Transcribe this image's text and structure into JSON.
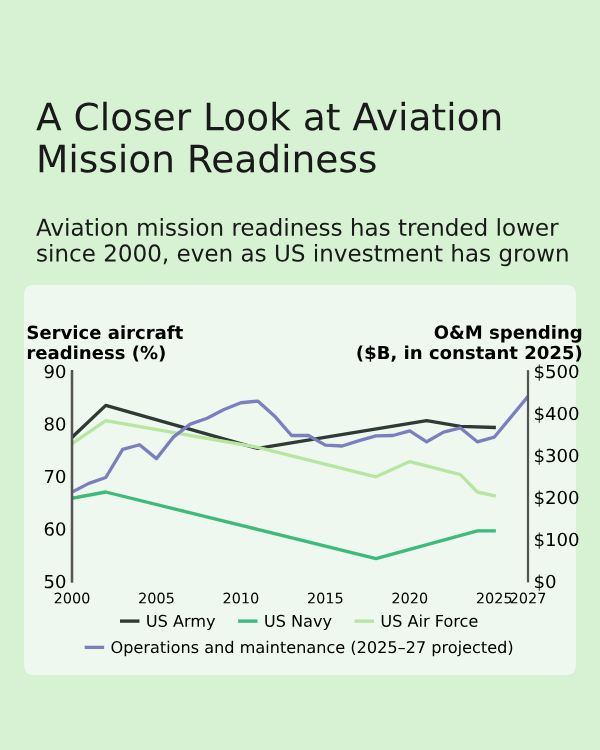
{
  "chart_data": {
    "type": "line",
    "title": "A Closer Look at Aviation Mission Readiness",
    "subtitle": "Aviation mission readiness has trended lower since 2000, even as US investment has grown",
    "ylabel": "Service aircraft\nreadiness (%)",
    "y2label": "O&M spending\n($B, in constant 2025)",
    "xlim": [
      2000,
      2027
    ],
    "xticks": [
      2000,
      2005,
      2010,
      2015,
      2020,
      2025,
      2027
    ],
    "ylim": [
      50,
      90
    ],
    "yticks": [
      50,
      60,
      70,
      80,
      90
    ],
    "y2lim": [
      0,
      500
    ],
    "y2ticks": [
      {
        "value": 0,
        "label": "$0"
      },
      {
        "value": 100,
        "label": "$100"
      },
      {
        "value": 200,
        "label": "$200"
      },
      {
        "value": 300,
        "label": "$300"
      },
      {
        "value": 400,
        "label": "$400"
      },
      {
        "value": 500,
        "label": "$500"
      }
    ],
    "grid": false,
    "legend": "bottom",
    "series": [
      {
        "name": "US Army",
        "color": "#2d3a35",
        "x": [
          2000,
          2002,
          2011,
          2021,
          2023,
          2025
        ],
        "values": [
          77.4,
          83.5,
          75.3,
          80.6,
          79.5,
          79.3
        ]
      },
      {
        "name": "US Navy",
        "color": "#3dbb7a",
        "x": [
          2000,
          2002,
          2018,
          2024,
          2025
        ],
        "values": [
          65.8,
          67,
          54.3,
          59.6,
          59.6
        ]
      },
      {
        "name": "US Air Force",
        "color": "#b8e6a0",
        "x": [
          2000,
          2002,
          2011,
          2018,
          2020,
          2023,
          2024,
          2025
        ],
        "values": [
          76.2,
          80.6,
          75.5,
          69.9,
          72.8,
          70.3,
          67,
          66.3
        ]
      },
      {
        "name": "Operations and maintenance (2025–27 projected)",
        "color": "#7a7fc0",
        "axis": "y2",
        "x": [
          2000,
          2001,
          2002,
          2003,
          2004,
          2005,
          2006,
          2007,
          2008,
          2009,
          2010,
          2011,
          2012,
          2013,
          2014,
          2015,
          2016,
          2017,
          2018,
          2019,
          2020,
          2021,
          2022,
          2023,
          2024,
          2025,
          2027
        ],
        "values": [
          212,
          233,
          247,
          314,
          325,
          292,
          343,
          374,
          388,
          409,
          425,
          429,
          393,
          347,
          347,
          324,
          322,
          335,
          346,
          347,
          358,
          332,
          355,
          365,
          332,
          343,
          440
        ]
      }
    ]
  }
}
